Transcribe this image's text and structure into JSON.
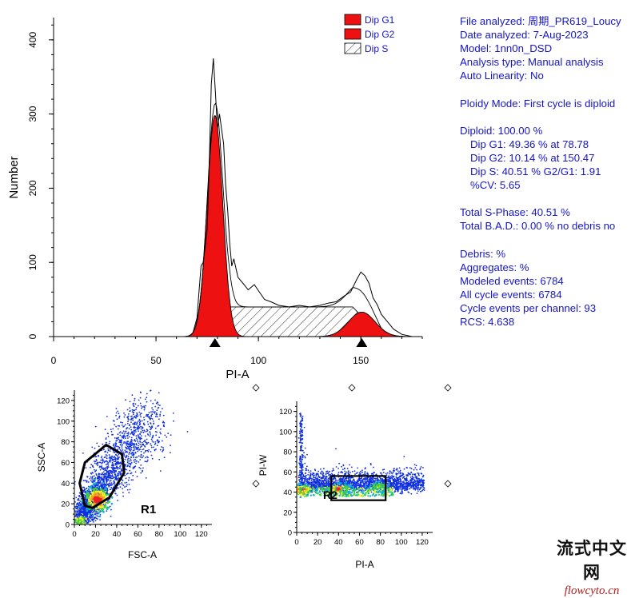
{
  "colors": {
    "g1_fill": "#ee1111",
    "g2_fill": "#ee1111",
    "s_hatch": "#333333",
    "info_text": "#1515c8",
    "dot_blue": "#1030e0",
    "watermark_red": "#b02020"
  },
  "chart_data": [
    {
      "type": "area",
      "title": "",
      "xlabel": "PI-A",
      "ylabel": "Number",
      "xlim": [
        0,
        180
      ],
      "ylim": [
        0,
        430
      ],
      "x_ticks": [
        0,
        50,
        100,
        150
      ],
      "y_ticks": [
        0,
        100,
        200,
        300,
        400
      ],
      "legend_position": "top-right",
      "legend": [
        {
          "name": "Dip G1",
          "style": "solid-red"
        },
        {
          "name": "Dip G2",
          "style": "solid-red"
        },
        {
          "name": "Dip S",
          "style": "hatched"
        }
      ],
      "g1": {
        "center": 78.78,
        "peak": 298,
        "sd": 3.8
      },
      "g2": {
        "center": 150.47,
        "peak": 33,
        "sd": 6.5
      },
      "s_phase": {
        "from": 80,
        "to": 150,
        "level": 40
      },
      "markers": [
        78.78,
        150.47
      ],
      "raw_histogram": [
        {
          "x": 0,
          "y": 0
        },
        {
          "x": 66,
          "y": 0
        },
        {
          "x": 68,
          "y": 5
        },
        {
          "x": 70,
          "y": 25
        },
        {
          "x": 71,
          "y": 60
        },
        {
          "x": 72,
          "y": 95
        },
        {
          "x": 73,
          "y": 100
        },
        {
          "x": 74,
          "y": 120
        },
        {
          "x": 75,
          "y": 145
        },
        {
          "x": 76,
          "y": 230
        },
        {
          "x": 77,
          "y": 340
        },
        {
          "x": 78,
          "y": 375
        },
        {
          "x": 79,
          "y": 330
        },
        {
          "x": 80,
          "y": 280
        },
        {
          "x": 81,
          "y": 300
        },
        {
          "x": 82,
          "y": 280
        },
        {
          "x": 83,
          "y": 260
        },
        {
          "x": 84,
          "y": 205
        },
        {
          "x": 85,
          "y": 170
        },
        {
          "x": 86,
          "y": 125
        },
        {
          "x": 87,
          "y": 95
        },
        {
          "x": 88,
          "y": 105
        },
        {
          "x": 90,
          "y": 80
        },
        {
          "x": 93,
          "y": 70
        },
        {
          "x": 95,
          "y": 63
        },
        {
          "x": 98,
          "y": 70
        },
        {
          "x": 100,
          "y": 62
        },
        {
          "x": 103,
          "y": 50
        },
        {
          "x": 106,
          "y": 47
        },
        {
          "x": 110,
          "y": 42
        },
        {
          "x": 115,
          "y": 40
        },
        {
          "x": 120,
          "y": 42
        },
        {
          "x": 125,
          "y": 40
        },
        {
          "x": 130,
          "y": 42
        },
        {
          "x": 134,
          "y": 45
        },
        {
          "x": 138,
          "y": 47
        },
        {
          "x": 142,
          "y": 55
        },
        {
          "x": 145,
          "y": 60
        },
        {
          "x": 148,
          "y": 77
        },
        {
          "x": 150,
          "y": 87
        },
        {
          "x": 152,
          "y": 82
        },
        {
          "x": 154,
          "y": 72
        },
        {
          "x": 156,
          "y": 52
        },
        {
          "x": 158,
          "y": 43
        },
        {
          "x": 160,
          "y": 30
        },
        {
          "x": 163,
          "y": 20
        },
        {
          "x": 166,
          "y": 10
        },
        {
          "x": 170,
          "y": 3
        },
        {
          "x": 175,
          "y": 0
        },
        {
          "x": 180,
          "y": 0
        }
      ]
    },
    {
      "type": "scatter",
      "title": "",
      "xlabel": "FSC-A",
      "ylabel": "SSC-A",
      "xlim": [
        0,
        130
      ],
      "ylim": [
        0,
        128
      ],
      "ticks": [
        0,
        20,
        40,
        60,
        80,
        100,
        120
      ],
      "gate_label": "R1",
      "gate_polygon": [
        [
          5,
          40
        ],
        [
          10,
          60
        ],
        [
          30,
          77
        ],
        [
          45,
          68
        ],
        [
          47,
          50
        ],
        [
          33,
          26
        ],
        [
          17,
          16
        ],
        [
          10,
          18
        ]
      ],
      "population": {
        "center": [
          20,
          22
        ],
        "trend": "diagonal up-right",
        "hotspot": [
          22,
          24
        ]
      }
    },
    {
      "type": "scatter",
      "title": "",
      "xlabel": "PI-A",
      "ylabel": "PI-W",
      "xlim": [
        0,
        130
      ],
      "ylim": [
        0,
        128
      ],
      "ticks": [
        0,
        20,
        40,
        60,
        80,
        100,
        120
      ],
      "gate_label": "R2",
      "gate_rect": {
        "x1": 33,
        "x2": 85,
        "y1": 32,
        "y2": 56
      },
      "population": {
        "band_y": 41,
        "hotspots": [
          [
            5,
            42
          ],
          [
            40,
            43
          ],
          [
            78,
            45
          ]
        ]
      }
    }
  ],
  "info_panel": {
    "file_analyzed": "File analyzed: 周期_PR619_Loucy",
    "date_analyzed": "Date analyzed: 7-Aug-2023",
    "model": "Model: 1nn0n_DSD",
    "analysis_type": "Analysis type: Manual analysis",
    "auto_linearity": "Auto Linearity: No",
    "ploidy_mode": "Ploidy Mode: First cycle is diploid",
    "diploid": "Diploid: 100.00 %",
    "dip_g1": "Dip G1: 49.36 % at 78.78",
    "dip_g2": "Dip G2: 10.14 % at 150.47",
    "dip_s": "Dip S: 40.51 %   G2/G1: 1.91",
    "cv": "%CV: 5.65",
    "total_s": "Total S-Phase: 40.51 %",
    "total_bad": "Total B.A.D.: 0.00 %   no debris no",
    "debris": "Debris:  %",
    "aggregates": "Aggregates:  %",
    "modeled_events": "Modeled events: 6784",
    "all_cycle_events": "All cycle events: 6784",
    "cycle_events_per_channel": "Cycle events per channel: 93",
    "rcs": "RCS: 4.638"
  },
  "watermark": {
    "cn": "流式中文网",
    "url": "flowcyto.cn"
  }
}
